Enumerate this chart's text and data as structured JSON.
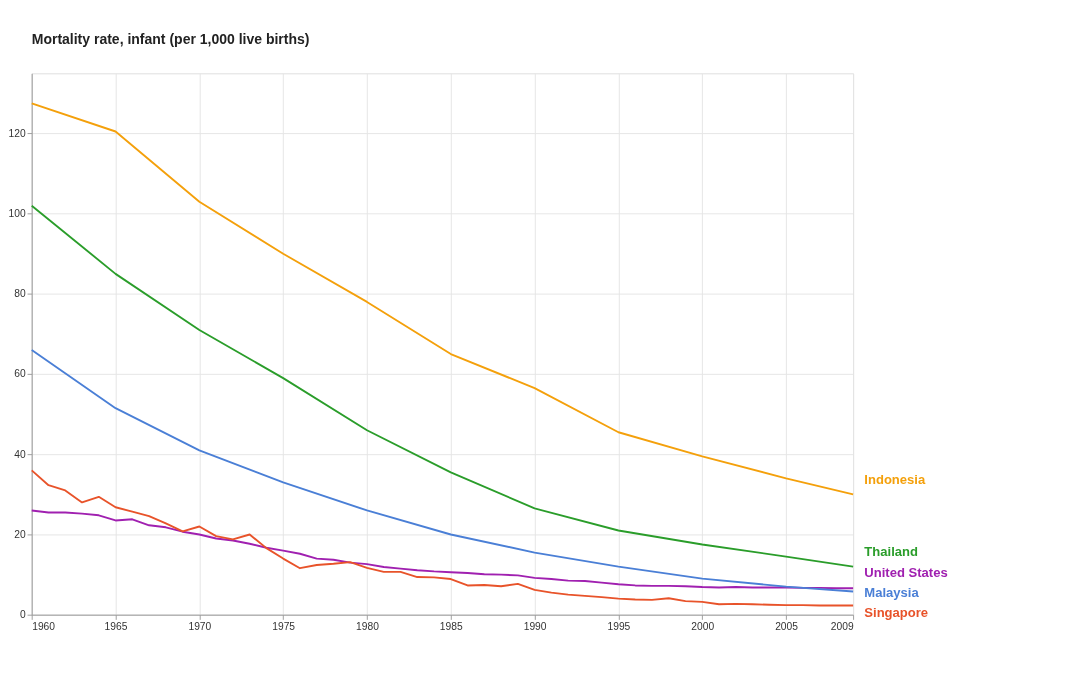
{
  "chart_data": {
    "type": "line",
    "title": "Mortality rate, infant (per 1,000 live births)",
    "xlim": [
      1960,
      2009
    ],
    "xticks": [
      1960,
      1965,
      1970,
      1975,
      1980,
      1985,
      1990,
      1995,
      2000,
      2005,
      2009
    ],
    "ylim": [
      0,
      135
    ],
    "yticks": [
      0,
      20,
      40,
      60,
      80,
      100,
      120
    ],
    "grid": true,
    "legend": false,
    "marker": "none",
    "line_style": "solid",
    "series": [
      {
        "name": "Indonesia",
        "color": "#f4a00b",
        "x": [
          1960,
          1965,
          1970,
          1975,
          1980,
          1985,
          1990,
          1995,
          2000,
          2005,
          2009
        ],
        "values": [
          127.5,
          120.5,
          103,
          90,
          78,
          65,
          56.5,
          45.5,
          39.5,
          34,
          30
        ]
      },
      {
        "name": "Thailand",
        "color": "#2a9d2a",
        "x": [
          1960,
          1965,
          1970,
          1975,
          1980,
          1985,
          1990,
          1995,
          2000,
          2005,
          2009
        ],
        "values": [
          102,
          85,
          71,
          59,
          46,
          35.5,
          26.5,
          21,
          17.5,
          14.5,
          12
        ]
      },
      {
        "name": "United States",
        "color": "#a020b0",
        "x": [
          1960,
          1961,
          1962,
          1963,
          1964,
          1965,
          1966,
          1967,
          1968,
          1969,
          1970,
          1971,
          1972,
          1973,
          1974,
          1975,
          1976,
          1977,
          1978,
          1979,
          1980,
          1981,
          1982,
          1983,
          1984,
          1985,
          1986,
          1987,
          1988,
          1989,
          1990,
          1991,
          1992,
          1993,
          1994,
          1995,
          1996,
          1997,
          1998,
          1999,
          2000,
          2001,
          2002,
          2003,
          2004,
          2005,
          2006,
          2007,
          2008,
          2009
        ],
        "values": [
          26,
          25.5,
          25.5,
          25.2,
          24.8,
          23.5,
          23.8,
          22.3,
          21.8,
          20.7,
          20,
          19,
          18.5,
          17.7,
          16.7,
          16,
          15.2,
          14,
          13.7,
          13,
          12.6,
          11.9,
          11.5,
          11.1,
          10.8,
          10.6,
          10.4,
          10.1,
          10,
          9.8,
          9.2,
          8.9,
          8.5,
          8.4,
          8,
          7.6,
          7.3,
          7.2,
          7.2,
          7.1,
          6.9,
          6.8,
          6.9,
          6.8,
          6.8,
          6.8,
          6.7,
          6.7,
          6.6,
          6.6
        ]
      },
      {
        "name": "Malaysia",
        "color": "#4a7fd6",
        "x": [
          1960,
          1965,
          1970,
          1975,
          1980,
          1985,
          1990,
          1995,
          2000,
          2005,
          2009
        ],
        "values": [
          66,
          51.5,
          41,
          33,
          26,
          20,
          15.5,
          12,
          9,
          7,
          5.8
        ]
      },
      {
        "name": "Singapore",
        "color": "#e8532a",
        "x": [
          1960,
          1961,
          1962,
          1963,
          1964,
          1965,
          1966,
          1967,
          1968,
          1969,
          1970,
          1971,
          1972,
          1973,
          1974,
          1975,
          1976,
          1977,
          1978,
          1979,
          1980,
          1981,
          1982,
          1983,
          1984,
          1985,
          1986,
          1987,
          1988,
          1989,
          1990,
          1991,
          1992,
          1993,
          1994,
          1995,
          1996,
          1997,
          1998,
          1999,
          2000,
          2001,
          2002,
          2003,
          2004,
          2005,
          2006,
          2007,
          2008,
          2009
        ],
        "values": [
          36,
          32.3,
          31,
          28,
          29.4,
          26.8,
          25.7,
          24.6,
          22.8,
          20.8,
          22,
          19.6,
          18.8,
          20,
          16.6,
          14,
          11.6,
          12.4,
          12.7,
          13.1,
          11.7,
          10.7,
          10.7,
          9.4,
          9.3,
          8.9,
          7.3,
          7.4,
          7.1,
          7.7,
          6.2,
          5.5,
          5,
          4.7,
          4.4,
          4,
          3.8,
          3.7,
          4.1,
          3.4,
          3.2,
          2.6,
          2.7,
          2.6,
          2.5,
          2.4,
          2.4,
          2.3,
          2.3,
          2.3
        ]
      }
    ]
  }
}
